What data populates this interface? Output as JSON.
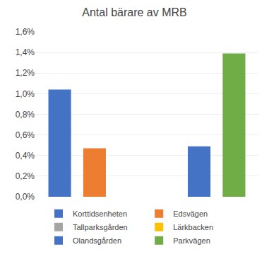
{
  "chart_data": {
    "type": "bar",
    "title": "Antal bärare av MRB",
    "categories": [
      "Korttidsenheten",
      "Edsvägen",
      "Tallparksgården",
      "Lärkbacken",
      "Olandsgården",
      "Parkvägen"
    ],
    "values": [
      0.0104,
      0.0047,
      0.0,
      0.0,
      0.0049,
      0.0139
    ],
    "colors": [
      "#4472c4",
      "#ed7d31",
      "#a5a5a5",
      "#ffc000",
      "#4472c4",
      "#70ad47"
    ],
    "ylim": [
      0,
      0.016
    ],
    "yticks": [
      {
        "value": 0.0,
        "label": "0,0%"
      },
      {
        "value": 0.002,
        "label": "0,2%"
      },
      {
        "value": 0.004,
        "label": "0,4%"
      },
      {
        "value": 0.006,
        "label": "0,6%"
      },
      {
        "value": 0.008,
        "label": "0,8%"
      },
      {
        "value": 0.01,
        "label": "1,0%"
      },
      {
        "value": 0.012,
        "label": "1,2%"
      },
      {
        "value": 0.014,
        "label": "1,4%"
      },
      {
        "value": 0.016,
        "label": "1,6%"
      }
    ],
    "grid": true,
    "tick_labels": "y",
    "legend": "bottom"
  }
}
